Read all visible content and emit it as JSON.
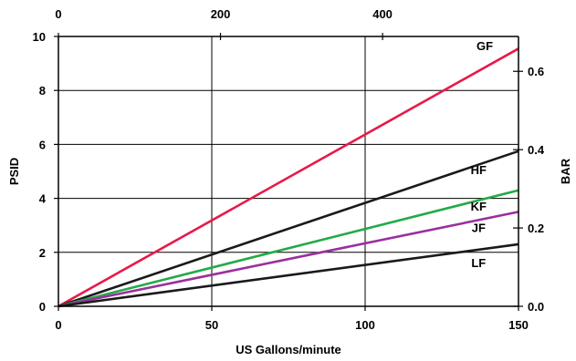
{
  "chart_data": {
    "type": "line",
    "title": "",
    "xlabel": "US Gallons/minute",
    "ylabel": "PSID",
    "y2label": "BAR",
    "xlim": [
      0,
      150
    ],
    "ylim": [
      0,
      10
    ],
    "x_ticks": [
      0,
      50,
      100,
      150
    ],
    "y_ticks": [
      0,
      2,
      4,
      6,
      8,
      10
    ],
    "x2_ticks": [
      "0",
      "200",
      "400"
    ],
    "x2_tick_values": [
      0,
      200,
      400
    ],
    "x2_scale_lpm_per_gpm": 3.785,
    "y2_ticks": [
      "0.0",
      "0.2",
      "0.4",
      "0.6"
    ],
    "y2_tick_values": [
      0.0,
      0.2,
      0.4,
      0.6
    ],
    "y2_scale_bar_per_psi": 0.0689,
    "grid": true,
    "series": [
      {
        "name": "GF",
        "color": "#e8194a",
        "x": [
          0,
          150
        ],
        "y": [
          0,
          9.55
        ],
        "label_at": [
          139,
          9.5
        ]
      },
      {
        "name": "HF",
        "color": "#1a1a1a",
        "x": [
          0,
          150
        ],
        "y": [
          0,
          5.75
        ],
        "label_at": [
          137,
          4.9
        ]
      },
      {
        "name": "KF",
        "color": "#22aa48",
        "x": [
          0,
          150
        ],
        "y": [
          0,
          4.3
        ],
        "label_at": [
          137,
          3.55
        ]
      },
      {
        "name": "JF",
        "color": "#9b2f9e",
        "x": [
          0,
          150
        ],
        "y": [
          0,
          3.5
        ],
        "label_at": [
          137,
          2.75
        ]
      },
      {
        "name": "LF",
        "color": "#1a1a1a",
        "x": [
          0,
          150
        ],
        "y": [
          0,
          2.3
        ],
        "label_at": [
          137,
          1.45
        ]
      }
    ]
  }
}
